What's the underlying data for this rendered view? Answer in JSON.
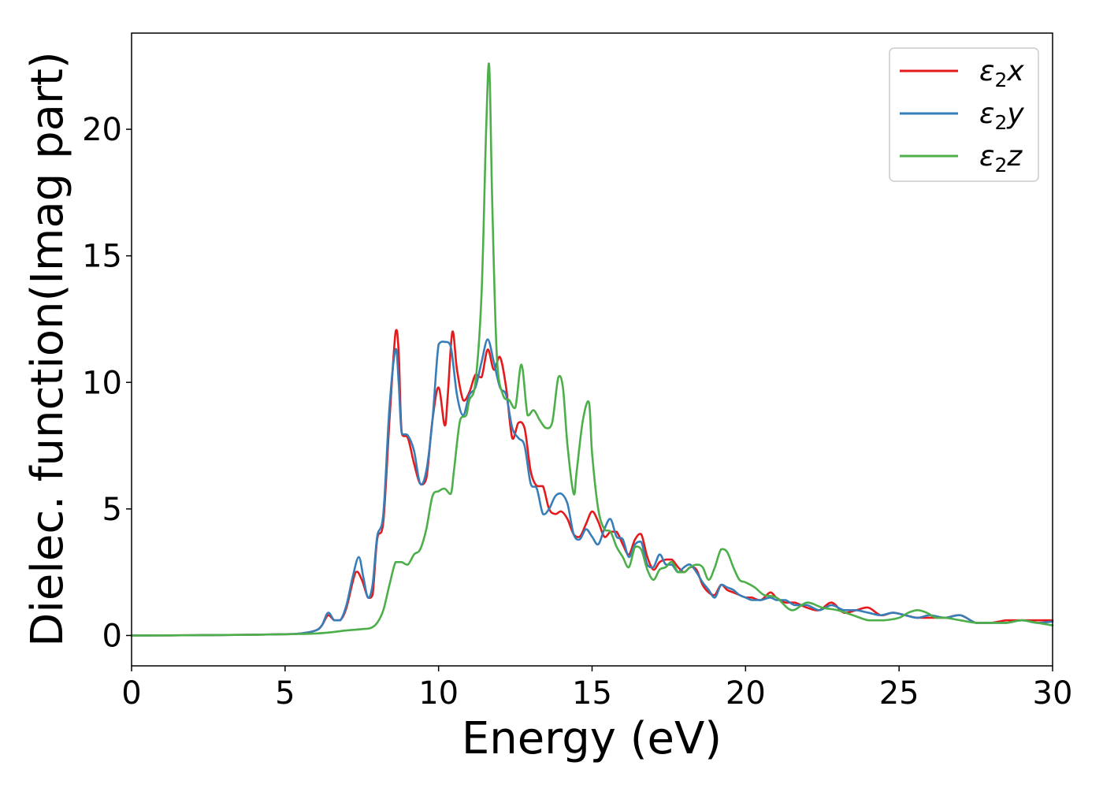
{
  "chart_data": {
    "type": "line",
    "title": "",
    "xlabel": "Energy (eV)",
    "ylabel": "Dielec. function(Imag part)",
    "xlim": [
      0,
      30
    ],
    "ylim": [
      -1.2,
      23.8
    ],
    "xticks": [
      0,
      5,
      10,
      15,
      20,
      25,
      30
    ],
    "yticks": [
      0,
      5,
      10,
      15,
      20
    ],
    "grid": false,
    "legend_position": "top-right",
    "series": [
      {
        "name": "ε2x",
        "legend_main": "ε",
        "legend_sub": "2",
        "legend_tail": "x",
        "color": "#e41a1c",
        "x": [
          0,
          2,
          4,
          5,
          5.5,
          6.0,
          6.2,
          6.4,
          6.6,
          6.8,
          7.0,
          7.3,
          7.5,
          7.7,
          7.85,
          8.0,
          8.2,
          8.4,
          8.6,
          8.7,
          8.8,
          9.0,
          9.2,
          9.4,
          9.6,
          9.8,
          10.0,
          10.2,
          10.3,
          10.45,
          10.6,
          10.8,
          11.0,
          11.2,
          11.4,
          11.6,
          11.8,
          12.0,
          12.2,
          12.4,
          12.6,
          12.8,
          13.0,
          13.2,
          13.4,
          13.6,
          13.8,
          14.0,
          14.2,
          14.4,
          14.6,
          14.8,
          15.0,
          15.2,
          15.4,
          15.6,
          15.8,
          16.0,
          16.2,
          16.4,
          16.6,
          16.8,
          17.0,
          17.2,
          17.4,
          17.6,
          17.8,
          18.0,
          18.2,
          18.4,
          18.6,
          18.8,
          19.0,
          19.2,
          19.4,
          19.6,
          19.8,
          20.0,
          20.2,
          20.5,
          20.8,
          21.0,
          21.3,
          21.6,
          22.0,
          22.4,
          22.8,
          23.2,
          23.6,
          24.0,
          24.4,
          24.8,
          25.2,
          25.6,
          26.0,
          26.5,
          27.0,
          27.5,
          28.0,
          28.5,
          29.0,
          29.5,
          30.0
        ],
        "y": [
          0,
          0.01,
          0.03,
          0.05,
          0.08,
          0.2,
          0.4,
          0.8,
          0.6,
          0.6,
          1.1,
          2.5,
          2.2,
          1.5,
          1.6,
          3.8,
          4.5,
          8.5,
          12.0,
          11.2,
          8.0,
          7.8,
          6.8,
          6.0,
          6.2,
          8.5,
          9.8,
          8.3,
          9.5,
          12.0,
          10.5,
          9.3,
          9.6,
          10.3,
          10.2,
          11.3,
          10.5,
          11.0,
          9.8,
          7.8,
          8.4,
          8.2,
          6.5,
          5.9,
          5.9,
          5.0,
          4.8,
          4.9,
          4.6,
          4.0,
          3.9,
          4.4,
          4.9,
          4.5,
          3.9,
          4.1,
          4.1,
          3.6,
          3.2,
          3.8,
          4.0,
          3.1,
          2.6,
          2.9,
          3.0,
          3.0,
          2.7,
          2.5,
          2.7,
          2.6,
          2.0,
          1.7,
          1.6,
          2.0,
          1.8,
          1.7,
          1.6,
          1.5,
          1.5,
          1.4,
          1.7,
          1.5,
          1.3,
          1.3,
          1.1,
          1.0,
          1.3,
          0.9,
          1.0,
          1.1,
          0.8,
          0.9,
          0.8,
          0.7,
          0.7,
          0.7,
          0.8,
          0.5,
          0.5,
          0.6,
          0.6,
          0.6,
          0.6
        ]
      },
      {
        "name": "ε2y",
        "legend_main": "ε",
        "legend_sub": "2",
        "legend_tail": "y",
        "color": "#377eb8",
        "x": [
          0,
          2,
          4,
          5,
          5.5,
          6.0,
          6.2,
          6.4,
          6.6,
          6.8,
          7.0,
          7.2,
          7.4,
          7.55,
          7.7,
          7.85,
          8.0,
          8.2,
          8.4,
          8.6,
          8.7,
          8.8,
          9.0,
          9.2,
          9.4,
          9.6,
          9.8,
          10.0,
          10.2,
          10.4,
          10.6,
          10.8,
          11.0,
          11.2,
          11.4,
          11.6,
          11.8,
          12.0,
          12.2,
          12.4,
          12.6,
          12.8,
          13.0,
          13.2,
          13.4,
          13.6,
          13.8,
          14.0,
          14.2,
          14.4,
          14.6,
          14.8,
          15.0,
          15.2,
          15.4,
          15.6,
          15.8,
          16.0,
          16.2,
          16.4,
          16.6,
          16.8,
          17.0,
          17.2,
          17.4,
          17.6,
          17.8,
          18.0,
          18.2,
          18.4,
          18.6,
          18.8,
          19.0,
          19.2,
          19.4,
          19.6,
          19.8,
          20.0,
          20.2,
          20.5,
          20.8,
          21.0,
          21.3,
          21.6,
          22.0,
          22.4,
          22.8,
          23.2,
          23.6,
          24.0,
          24.4,
          24.8,
          25.2,
          25.6,
          26.0,
          26.5,
          27.0,
          27.5,
          28.0,
          28.5,
          29.0,
          29.5,
          30.0
        ],
        "y": [
          0,
          0.01,
          0.03,
          0.05,
          0.08,
          0.2,
          0.4,
          0.9,
          0.6,
          0.6,
          1.2,
          2.3,
          3.1,
          2.3,
          1.5,
          2.0,
          3.9,
          4.8,
          9.0,
          11.3,
          10.0,
          8.0,
          7.9,
          7.3,
          6.0,
          6.5,
          8.5,
          11.5,
          11.6,
          11.4,
          9.5,
          8.7,
          9.5,
          9.8,
          10.8,
          11.7,
          10.8,
          9.8,
          9.5,
          8.2,
          7.8,
          7.5,
          6.0,
          5.8,
          4.8,
          5.0,
          5.5,
          5.6,
          5.2,
          4.0,
          3.8,
          4.2,
          3.9,
          3.6,
          4.2,
          4.6,
          3.9,
          3.8,
          3.1,
          3.6,
          3.7,
          2.8,
          2.7,
          3.2,
          2.8,
          2.8,
          2.5,
          2.7,
          2.8,
          2.5,
          2.1,
          1.8,
          1.5,
          2.0,
          1.9,
          1.8,
          1.6,
          1.5,
          1.4,
          1.4,
          1.5,
          1.4,
          1.4,
          1.2,
          1.2,
          1.0,
          1.2,
          1.0,
          1.0,
          0.9,
          0.8,
          0.9,
          0.8,
          0.7,
          0.8,
          0.7,
          0.8,
          0.5,
          0.5,
          0.5,
          0.6,
          0.5,
          0.55
        ]
      },
      {
        "name": "ε2z",
        "legend_main": "ε",
        "legend_sub": "2",
        "legend_tail": "z",
        "color": "#4daf4a",
        "x": [
          0,
          2,
          4,
          6,
          7,
          7.5,
          7.8,
          8.0,
          8.2,
          8.4,
          8.6,
          8.8,
          9.0,
          9.2,
          9.4,
          9.6,
          9.8,
          10.0,
          10.2,
          10.4,
          10.5,
          10.7,
          10.9,
          11.0,
          11.2,
          11.4,
          11.55,
          11.65,
          11.75,
          11.9,
          12.1,
          12.3,
          12.5,
          12.7,
          12.9,
          13.1,
          13.3,
          13.5,
          13.7,
          13.9,
          14.05,
          14.2,
          14.4,
          14.5,
          14.7,
          14.9,
          15.0,
          15.2,
          15.4,
          15.6,
          15.8,
          16.0,
          16.2,
          16.4,
          16.6,
          16.8,
          17.0,
          17.2,
          17.4,
          17.6,
          17.8,
          18.0,
          18.2,
          18.4,
          18.6,
          18.8,
          19.0,
          19.2,
          19.4,
          19.6,
          19.8,
          20.0,
          20.3,
          20.6,
          21.0,
          21.5,
          22.0,
          22.5,
          23.0,
          23.5,
          24.0,
          24.5,
          25.0,
          25.3,
          25.6,
          25.9,
          26.2,
          26.5,
          27.0,
          27.5,
          28.0,
          28.5,
          29.0,
          29.5,
          30.0
        ],
        "y": [
          0,
          0.01,
          0.03,
          0.08,
          0.2,
          0.25,
          0.3,
          0.5,
          1.0,
          2.0,
          2.9,
          2.9,
          2.8,
          3.2,
          3.4,
          4.2,
          5.5,
          5.7,
          5.8,
          5.6,
          6.5,
          8.5,
          8.7,
          9.3,
          10.0,
          13.5,
          20.0,
          22.5,
          17.0,
          11.0,
          9.5,
          9.3,
          9.0,
          10.7,
          8.7,
          8.9,
          8.5,
          8.2,
          8.4,
          10.2,
          9.8,
          7.5,
          5.6,
          6.5,
          8.5,
          9.2,
          7.2,
          5.0,
          4.2,
          4.1,
          3.5,
          3.1,
          2.7,
          3.5,
          3.4,
          2.6,
          2.2,
          2.6,
          2.7,
          2.9,
          2.5,
          2.5,
          2.7,
          2.8,
          2.7,
          2.2,
          2.7,
          3.4,
          3.3,
          2.7,
          2.2,
          2.1,
          1.9,
          1.6,
          1.5,
          1.0,
          1.3,
          1.1,
          1.0,
          0.8,
          0.6,
          0.6,
          0.7,
          0.9,
          1.0,
          0.9,
          0.7,
          0.7,
          0.6,
          0.5,
          0.5,
          0.5,
          0.6,
          0.5,
          0.4
        ]
      }
    ]
  }
}
